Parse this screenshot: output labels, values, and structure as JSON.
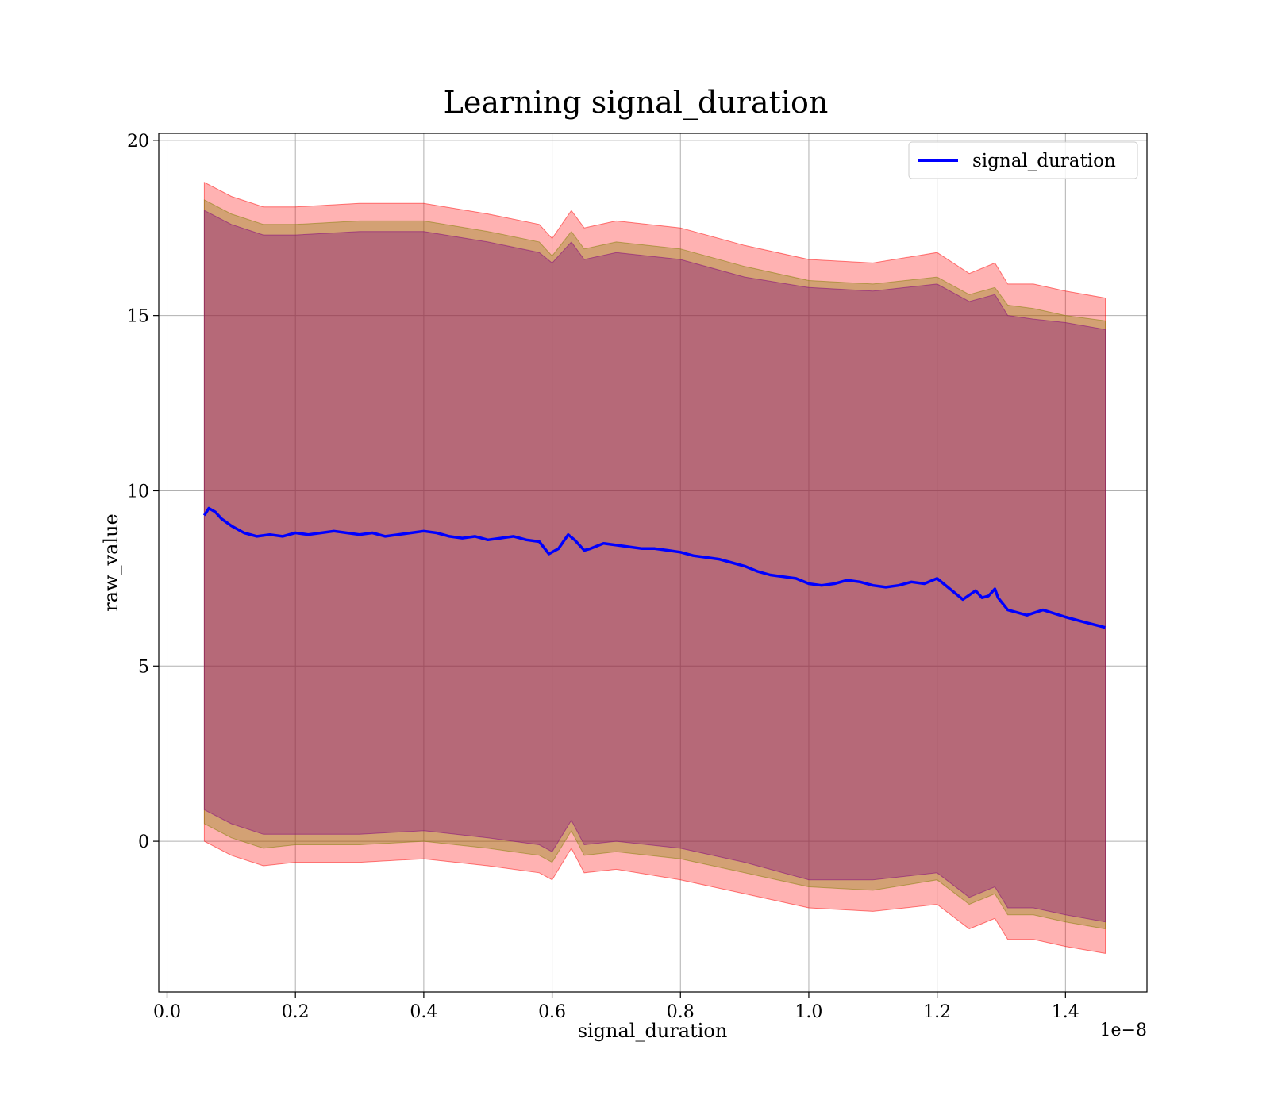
{
  "chart_data": {
    "type": "line",
    "title": "Learning signal_duration",
    "xlabel": "signal_duration",
    "ylabel": "raw_value",
    "x_multiplier_label": "1e−8",
    "xlim": [
      -0.013,
      1.527
    ],
    "ylim": [
      -4.3,
      20.2
    ],
    "x_ticks": [
      0.0,
      0.2,
      0.4,
      0.6,
      0.8,
      1.0,
      1.2,
      1.4
    ],
    "x_tick_labels": [
      "0.0",
      "0.2",
      "0.4",
      "0.6",
      "0.8",
      "1.0",
      "1.2",
      "1.4"
    ],
    "y_ticks": [
      0,
      5,
      10,
      15,
      20
    ],
    "y_tick_labels": [
      "0",
      "5",
      "10",
      "15",
      "20"
    ],
    "grid": true,
    "legend_position": "top-right",
    "series": [
      {
        "name": "signal_duration",
        "color": "#0000ff",
        "x": [
          0.058,
          0.065,
          0.075,
          0.085,
          0.1,
          0.12,
          0.14,
          0.16,
          0.18,
          0.2,
          0.22,
          0.24,
          0.26,
          0.28,
          0.3,
          0.32,
          0.34,
          0.36,
          0.38,
          0.4,
          0.42,
          0.44,
          0.46,
          0.48,
          0.5,
          0.52,
          0.54,
          0.56,
          0.58,
          0.595,
          0.61,
          0.625,
          0.635,
          0.65,
          0.66,
          0.68,
          0.7,
          0.72,
          0.74,
          0.76,
          0.78,
          0.8,
          0.82,
          0.84,
          0.86,
          0.88,
          0.9,
          0.92,
          0.94,
          0.96,
          0.98,
          1.0,
          1.02,
          1.04,
          1.06,
          1.08,
          1.1,
          1.12,
          1.14,
          1.16,
          1.18,
          1.2,
          1.22,
          1.24,
          1.26,
          1.27,
          1.28,
          1.29,
          1.295,
          1.31,
          1.34,
          1.365,
          1.4,
          1.43,
          1.462
        ],
        "values": [
          9.3,
          9.5,
          9.4,
          9.2,
          9.0,
          8.8,
          8.7,
          8.75,
          8.7,
          8.8,
          8.75,
          8.8,
          8.85,
          8.8,
          8.75,
          8.8,
          8.7,
          8.75,
          8.8,
          8.85,
          8.8,
          8.7,
          8.65,
          8.7,
          8.6,
          8.65,
          8.7,
          8.6,
          8.55,
          8.2,
          8.35,
          8.75,
          8.6,
          8.3,
          8.35,
          8.5,
          8.45,
          8.4,
          8.35,
          8.35,
          8.3,
          8.25,
          8.15,
          8.1,
          8.05,
          7.95,
          7.85,
          7.7,
          7.6,
          7.55,
          7.5,
          7.35,
          7.3,
          7.35,
          7.45,
          7.4,
          7.3,
          7.25,
          7.3,
          7.4,
          7.35,
          7.5,
          7.2,
          6.9,
          7.15,
          6.95,
          7.0,
          7.2,
          6.95,
          6.6,
          6.45,
          6.6,
          6.4,
          6.25,
          6.1
        ]
      }
    ],
    "bands": [
      {
        "color": "#ff0000",
        "opacity": 0.3,
        "x": [
          0.058,
          0.1,
          0.15,
          0.2,
          0.3,
          0.4,
          0.5,
          0.58,
          0.6,
          0.63,
          0.65,
          0.7,
          0.8,
          0.9,
          1.0,
          1.1,
          1.2,
          1.25,
          1.29,
          1.31,
          1.35,
          1.4,
          1.462
        ],
        "upper": [
          18.8,
          18.4,
          18.1,
          18.1,
          18.2,
          18.2,
          17.9,
          17.6,
          17.2,
          18.0,
          17.5,
          17.7,
          17.5,
          17.0,
          16.6,
          16.5,
          16.8,
          16.2,
          16.5,
          15.9,
          15.9,
          15.7,
          15.5
        ],
        "lower": [
          0.0,
          -0.4,
          -0.7,
          -0.6,
          -0.6,
          -0.5,
          -0.7,
          -0.9,
          -1.1,
          -0.2,
          -0.9,
          -0.8,
          -1.1,
          -1.5,
          -1.9,
          -2.0,
          -1.8,
          -2.5,
          -2.2,
          -2.8,
          -2.8,
          -3.0,
          -3.2
        ]
      },
      {
        "color": "#808000",
        "opacity": 0.35,
        "x": [
          0.058,
          0.1,
          0.15,
          0.2,
          0.3,
          0.4,
          0.5,
          0.58,
          0.6,
          0.63,
          0.65,
          0.7,
          0.8,
          0.9,
          1.0,
          1.1,
          1.2,
          1.25,
          1.29,
          1.31,
          1.35,
          1.4,
          1.462
        ],
        "upper": [
          18.3,
          17.9,
          17.6,
          17.6,
          17.7,
          17.7,
          17.4,
          17.1,
          16.7,
          17.4,
          16.9,
          17.1,
          16.9,
          16.4,
          16.0,
          15.9,
          16.1,
          15.6,
          15.8,
          15.3,
          15.2,
          15.0,
          14.85
        ],
        "lower": [
          0.5,
          0.1,
          -0.2,
          -0.1,
          -0.1,
          0.0,
          -0.2,
          -0.4,
          -0.6,
          0.3,
          -0.4,
          -0.3,
          -0.5,
          -0.9,
          -1.3,
          -1.4,
          -1.1,
          -1.8,
          -1.5,
          -2.1,
          -2.1,
          -2.3,
          -2.5
        ]
      },
      {
        "color": "#800080",
        "opacity": 0.35,
        "x": [
          0.058,
          0.1,
          0.15,
          0.2,
          0.3,
          0.4,
          0.5,
          0.58,
          0.6,
          0.63,
          0.65,
          0.7,
          0.8,
          0.9,
          1.0,
          1.1,
          1.2,
          1.25,
          1.29,
          1.31,
          1.35,
          1.4,
          1.462
        ],
        "upper": [
          18.0,
          17.6,
          17.3,
          17.3,
          17.4,
          17.4,
          17.1,
          16.8,
          16.5,
          17.1,
          16.6,
          16.8,
          16.6,
          16.1,
          15.8,
          15.7,
          15.9,
          15.4,
          15.6,
          15.0,
          14.9,
          14.8,
          14.6
        ],
        "lower": [
          0.9,
          0.5,
          0.2,
          0.2,
          0.2,
          0.3,
          0.1,
          -0.1,
          -0.3,
          0.6,
          -0.1,
          0.0,
          -0.2,
          -0.6,
          -1.1,
          -1.1,
          -0.9,
          -1.6,
          -1.3,
          -1.9,
          -1.9,
          -2.1,
          -2.3
        ]
      }
    ]
  }
}
